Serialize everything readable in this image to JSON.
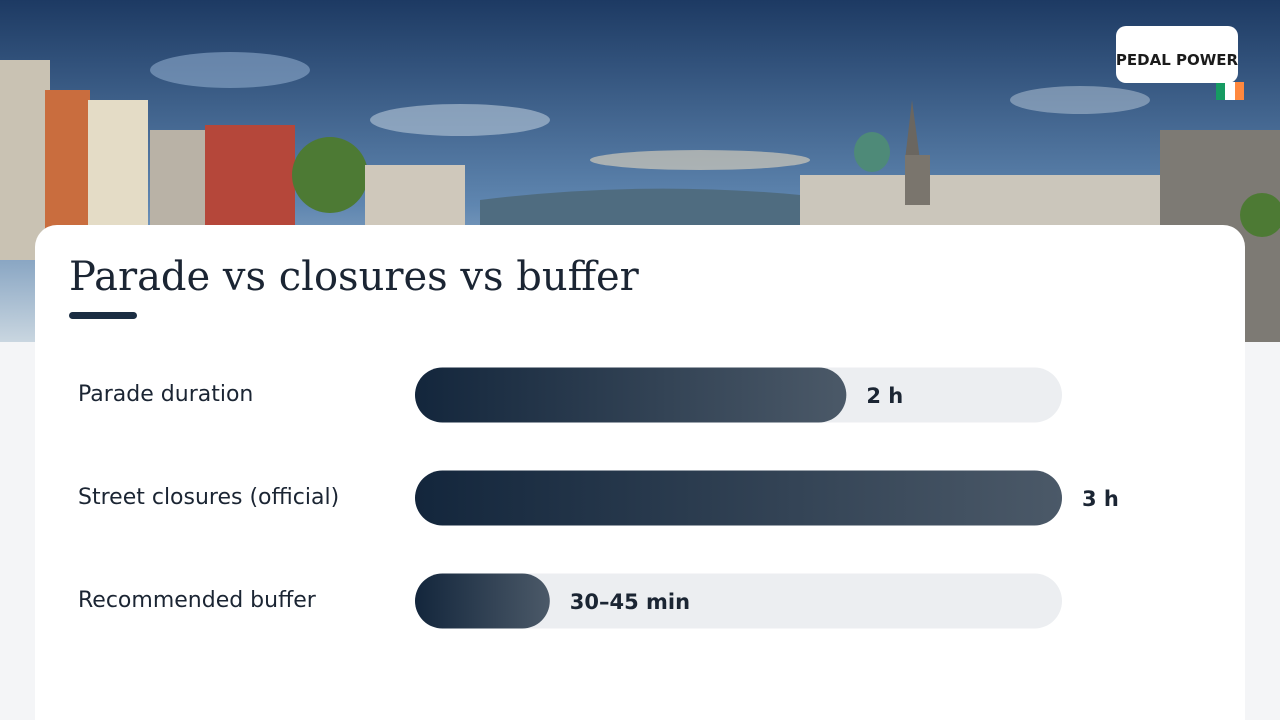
{
  "logo": "PEDAL POWER",
  "chart_data": {
    "type": "bar",
    "orientation": "horizontal",
    "title": "Parade vs closures vs buffer",
    "categories": [
      "Parade duration",
      "Street closures (official)",
      "Recommended buffer"
    ],
    "values": [
      2,
      3,
      0.625
    ],
    "value_labels": [
      "2 h",
      "3 h",
      "30–45 min"
    ],
    "xlim": [
      0,
      3
    ],
    "color": [
      "#13263c",
      "#4b5968"
    ]
  }
}
